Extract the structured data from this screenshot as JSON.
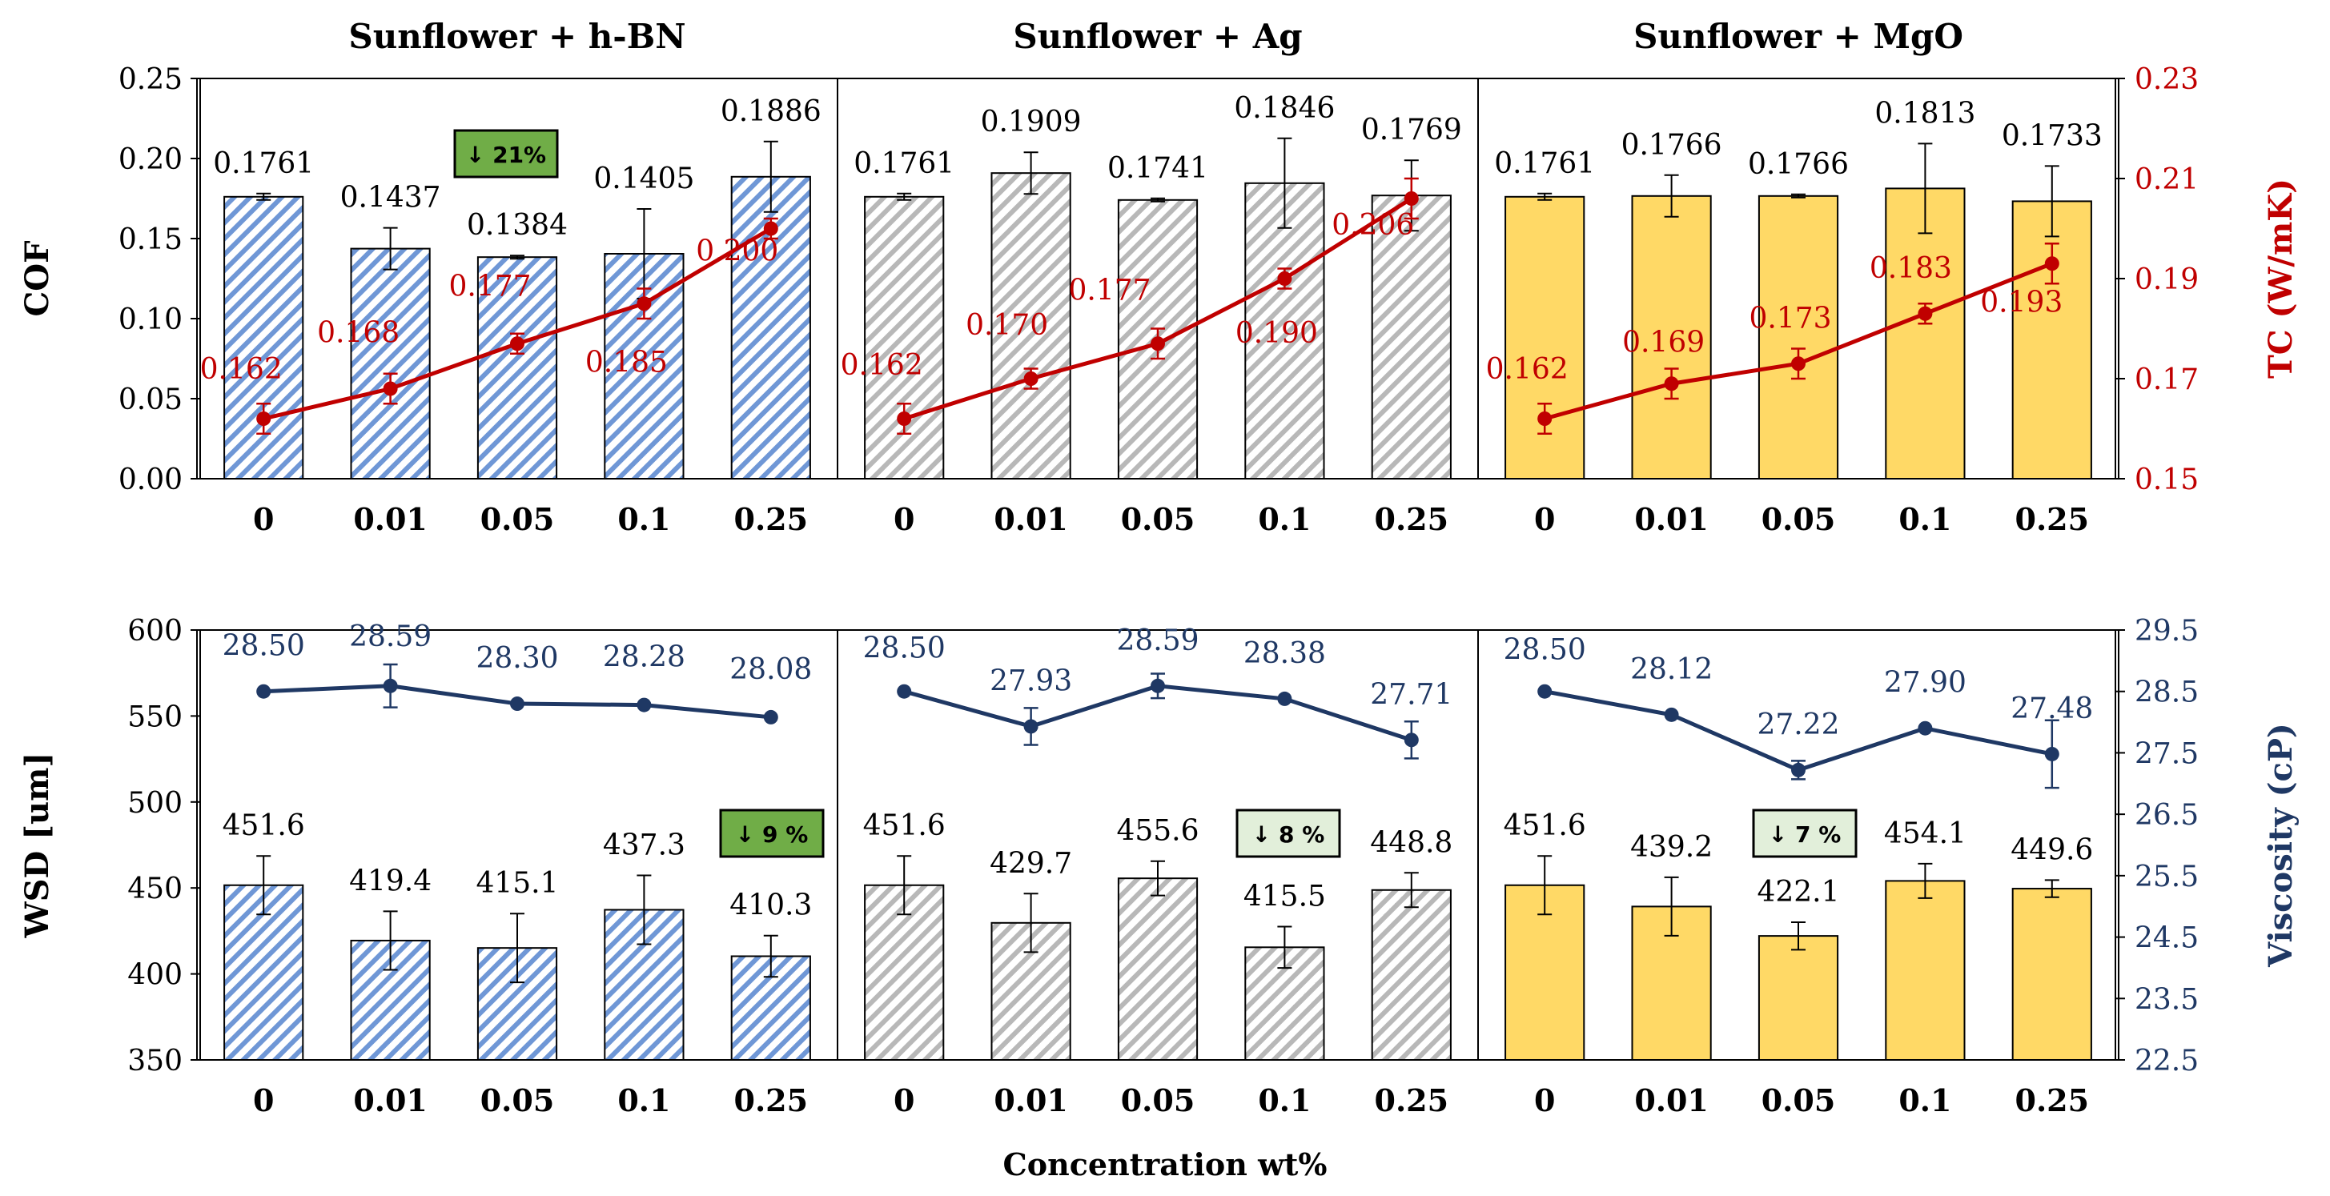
{
  "figure": {
    "xlabel": "Concentration wt%",
    "colors": {
      "tc": "#c00000",
      "viscosity": "#1f3864",
      "black": "#000000"
    }
  },
  "chart_data": [
    {
      "type": "bar",
      "title": "Sunflower + h-BN",
      "categories": [
        "0",
        "0.01",
        "0.05",
        "0.1",
        "0.25"
      ],
      "series": [
        {
          "name": "COF",
          "values": [
            0.1761,
            0.1437,
            0.1384,
            0.1405,
            0.1886
          ],
          "errors": [
            0.002,
            0.013,
            0.001,
            0.028,
            0.022
          ]
        },
        {
          "name": "TC",
          "type": "line",
          "axis": "right",
          "values": [
            0.162,
            0.168,
            0.177,
            0.185,
            0.2
          ],
          "errors": [
            0.003,
            0.003,
            0.002,
            0.003,
            0.002
          ]
        }
      ],
      "bar_fill": "bh",
      "bar_color": "#4472c4",
      "badge": {
        "text": "↓ 21%",
        "style": "strong"
      }
    },
    {
      "type": "bar",
      "title": "Sunflower + Ag",
      "categories": [
        "0",
        "0.01",
        "0.05",
        "0.1",
        "0.25"
      ],
      "series": [
        {
          "name": "COF",
          "values": [
            0.1761,
            0.1909,
            0.1741,
            0.1846,
            0.1769
          ],
          "errors": [
            0.002,
            0.013,
            0.001,
            0.028,
            0.022
          ]
        },
        {
          "name": "TC",
          "type": "line",
          "axis": "right",
          "values": [
            0.162,
            0.17,
            0.177,
            0.19,
            0.206
          ],
          "errors": [
            0.003,
            0.002,
            0.003,
            0.002,
            0.004
          ]
        }
      ],
      "bar_fill": "ag",
      "bar_color": "#a6a6a6"
    },
    {
      "type": "bar",
      "title": "Sunflower + MgO",
      "categories": [
        "0",
        "0.01",
        "0.05",
        "0.1",
        "0.25"
      ],
      "series": [
        {
          "name": "COF",
          "values": [
            0.1761,
            0.1766,
            0.1766,
            0.1813,
            0.1733
          ],
          "errors": [
            0.002,
            0.013,
            0.001,
            0.028,
            0.022
          ]
        },
        {
          "name": "TC",
          "type": "line",
          "axis": "right",
          "values": [
            0.162,
            0.169,
            0.173,
            0.183,
            0.193
          ],
          "errors": [
            0.003,
            0.003,
            0.003,
            0.002,
            0.004
          ]
        }
      ],
      "bar_fill": "mg",
      "bar_color": "#ffd966"
    },
    {
      "type": "bar",
      "title": "",
      "categories": [
        "0",
        "0.01",
        "0.05",
        "0.1",
        "0.25"
      ],
      "series": [
        {
          "name": "WSD",
          "values": [
            451.6,
            419.4,
            415.1,
            437.3,
            410.3
          ],
          "errors": [
            17,
            17,
            20,
            20,
            12
          ]
        },
        {
          "name": "Viscosity",
          "type": "line",
          "axis": "right",
          "values": [
            28.5,
            28.59,
            28.3,
            28.28,
            28.08
          ],
          "errors": [
            0.0,
            0.35,
            0.0,
            0.0,
            0.0
          ]
        }
      ],
      "bar_fill": "bh",
      "bar_color": "#4472c4",
      "badge": {
        "text": "↓ 9 %",
        "style": "strong"
      }
    },
    {
      "type": "bar",
      "title": "",
      "categories": [
        "0",
        "0.01",
        "0.05",
        "0.1",
        "0.25"
      ],
      "series": [
        {
          "name": "WSD",
          "values": [
            451.6,
            429.7,
            455.6,
            415.5,
            448.8
          ],
          "errors": [
            17,
            17,
            10,
            12,
            10
          ]
        },
        {
          "name": "Viscosity",
          "type": "line",
          "axis": "right",
          "values": [
            28.5,
            27.93,
            28.59,
            28.38,
            27.71
          ],
          "errors": [
            0.0,
            0.3,
            0.2,
            0.0,
            0.3
          ]
        }
      ],
      "bar_fill": "ag",
      "bar_color": "#a6a6a6",
      "badge": {
        "text": "↓ 8 %",
        "style": "light"
      }
    },
    {
      "type": "bar",
      "title": "",
      "categories": [
        "0",
        "0.01",
        "0.05",
        "0.1",
        "0.25"
      ],
      "series": [
        {
          "name": "WSD",
          "values": [
            451.6,
            439.2,
            422.1,
            454.1,
            449.6
          ],
          "errors": [
            17,
            17,
            8,
            10,
            5
          ]
        },
        {
          "name": "Viscosity",
          "type": "line",
          "axis": "right",
          "values": [
            28.5,
            28.12,
            27.22,
            27.9,
            27.48
          ],
          "errors": [
            0.0,
            0.0,
            0.15,
            0.0,
            0.55
          ]
        }
      ],
      "bar_fill": "mg",
      "bar_color": "#ffd966",
      "badge": {
        "text": "↓ 7 %",
        "style": "light"
      }
    }
  ],
  "axes": {
    "top": {
      "ylabel": "COF",
      "ylim": [
        0,
        0.25
      ],
      "ticks": [
        "0.00",
        "0.05",
        "0.10",
        "0.15",
        "0.20",
        "0.25"
      ],
      "y2label": "TC (W/mK)",
      "y2lim": [
        0.15,
        0.23
      ],
      "y2ticks": [
        "0.15",
        "0.17",
        "0.19",
        "0.21",
        "0.23"
      ]
    },
    "bottom": {
      "ylabel": "WSD [um]",
      "ylim": [
        350,
        600
      ],
      "ticks": [
        "350",
        "400",
        "450",
        "500",
        "550",
        "600"
      ],
      "y2label": "Viscosity  (cP)",
      "y2lim": [
        22.5,
        29.5
      ],
      "y2ticks": [
        "22.5",
        "23.5",
        "24.5",
        "25.5",
        "26.5",
        "27.5",
        "28.5",
        "29.5"
      ]
    }
  }
}
